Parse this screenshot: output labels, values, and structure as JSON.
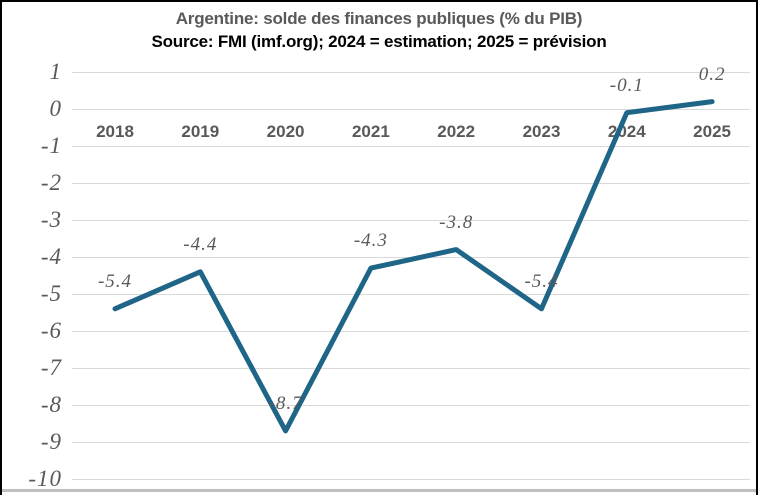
{
  "frame": {
    "background": "#FFFFFF",
    "border_color": "#000000",
    "bottom_bar_color": "#BFBFBF"
  },
  "chart_data": {
    "type": "line",
    "title": "Argentine: solde des finances publiques (% du PIB)",
    "subtitle": "Source: FMI (imf.org); 2024 = estimation; 2025 = prévision",
    "categories": [
      "2018",
      "2019",
      "2020",
      "2021",
      "2022",
      "2023",
      "2024",
      "2025"
    ],
    "values": [
      -5.4,
      -4.4,
      -8.7,
      -4.3,
      -3.8,
      -5.4,
      -0.1,
      0.2
    ],
    "point_labels": [
      "-5.4",
      "-4.4",
      "-8.7",
      "-4.3",
      "-3.8",
      "-5.4",
      "-0.1",
      "0.2"
    ],
    "yticks": [
      1,
      0,
      -1,
      -2,
      -3,
      -4,
      -5,
      -6,
      -7,
      -8,
      -9,
      -10
    ],
    "ylim": [
      -10,
      1
    ],
    "xlabel": "",
    "ylabel": "",
    "grid": true,
    "legend_position": "none",
    "line_color": "#1F6587",
    "grid_color": "#D9D9D9",
    "title_color": "#595959",
    "subtitle_color": "#000000",
    "axis_text_color": "#595959",
    "data_label_color": "#595959"
  }
}
